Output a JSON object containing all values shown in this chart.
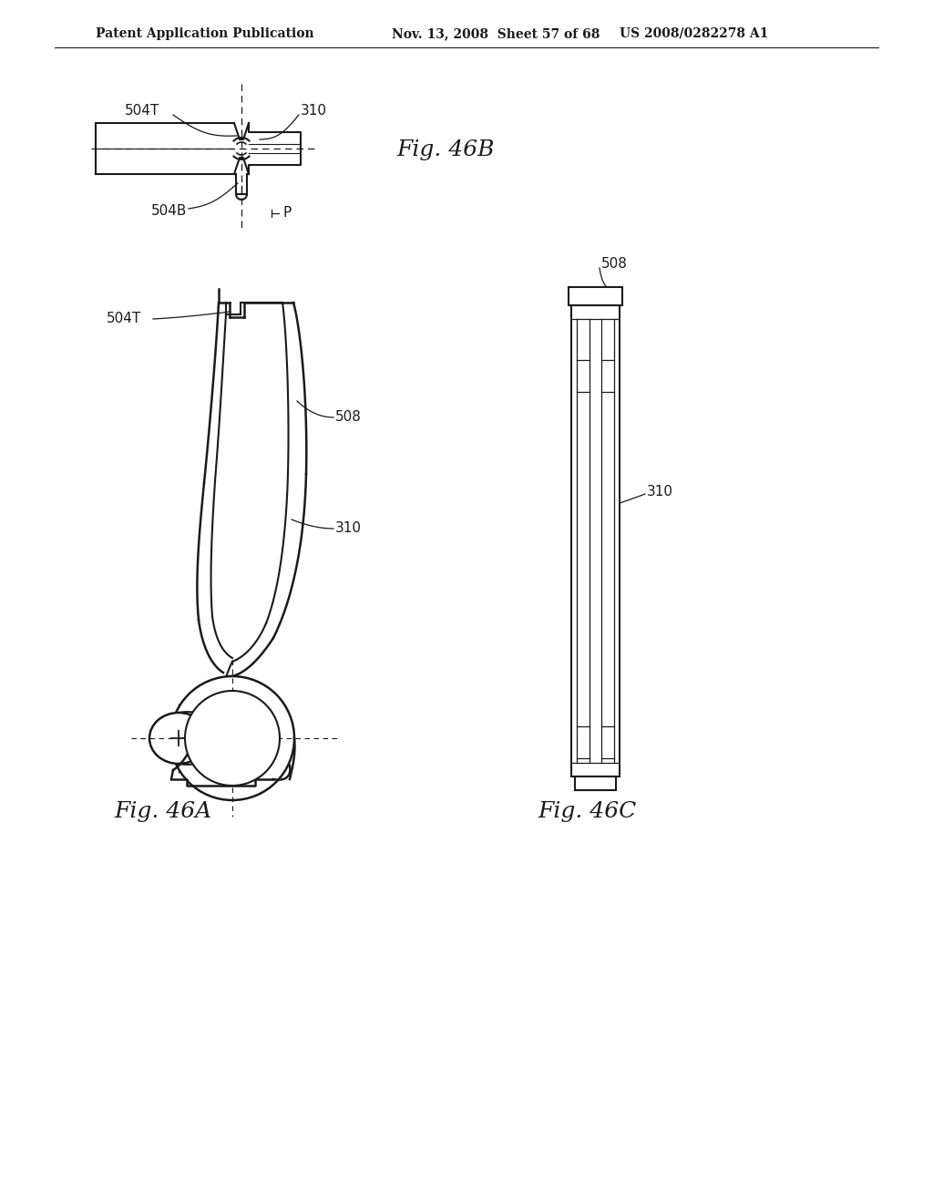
{
  "bg_color": "#ffffff",
  "line_color": "#1a1a1a",
  "header_text_left": "Patent Application Publication",
  "header_text_mid": "Nov. 13, 2008  Sheet 57 of 68",
  "header_text_right": "US 2008/0282278 A1",
  "fig46B_label": "Fig. 46B",
  "fig46A_label": "Fig. 46A",
  "fig46C_label": "Fig. 46C",
  "lbl_504T_top": "504T",
  "lbl_310_top": "310",
  "lbl_504B": "504B",
  "lbl_P": "P",
  "lbl_504T_main": "504T",
  "lbl_508_main": "508",
  "lbl_310_main": "310",
  "lbl_508_right": "508",
  "lbl_310_right": "310"
}
